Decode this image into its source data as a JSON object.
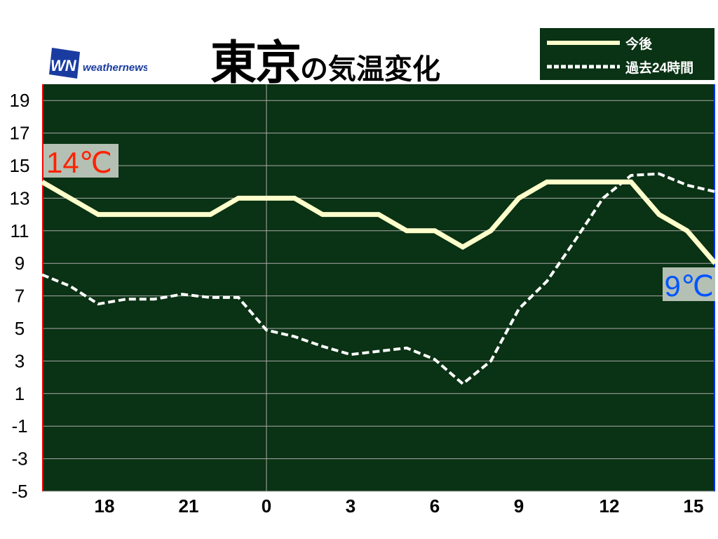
{
  "logo": {
    "mark": "WN",
    "text": "weathernews"
  },
  "title": {
    "main": "東京",
    "sub": "の気温変化"
  },
  "legend": [
    {
      "label": "今後",
      "style": "solid",
      "color": "#ffffcc"
    },
    {
      "label": "過去24時間",
      "style": "dashed",
      "color": "#ffffff"
    }
  ],
  "colors": {
    "plot_bg": "#0a3214",
    "grid": "#aaaaaa",
    "label_bg": "#b4c0b4",
    "max_label": "#ff2200",
    "min_label": "#0055ff",
    "left_edge": "#ff0000",
    "right_edge": "#0033ff"
  },
  "chart_data": {
    "type": "line",
    "title": "東京の気温変化",
    "xlabel": "",
    "ylabel": "",
    "x": [
      16,
      17,
      18,
      19,
      20,
      21,
      22,
      23,
      0,
      1,
      2,
      3,
      4,
      5,
      6,
      7,
      8,
      9,
      10,
      11,
      12,
      13,
      14,
      15,
      16
    ],
    "xlim_hours": [
      16,
      40
    ],
    "xticks": [
      18,
      21,
      0,
      3,
      6,
      9,
      12,
      15
    ],
    "yticks": [
      19,
      17,
      15,
      13,
      11,
      9,
      7,
      5,
      3,
      1,
      -1,
      -3,
      -5
    ],
    "ylim": [
      -5,
      20
    ],
    "grid": "horizontal every 2 units, vertical at 0",
    "series": [
      {
        "name": "今後",
        "style": "solid",
        "values": [
          14,
          13,
          12,
          12,
          12,
          12,
          12,
          13,
          13,
          13,
          12,
          12,
          12,
          11,
          11,
          10,
          11,
          13,
          14,
          14,
          14,
          14,
          12,
          11,
          9
        ]
      },
      {
        "name": "過去24時間",
        "style": "dashed",
        "values": [
          8.3,
          7.6,
          6.5,
          6.8,
          6.8,
          7.1,
          6.9,
          6.9,
          4.9,
          4.5,
          3.9,
          3.4,
          3.6,
          3.8,
          3.1,
          1.6,
          3.0,
          6.2,
          7.9,
          10.4,
          13.0,
          14.4,
          14.5,
          13.8,
          13.4
        ]
      }
    ],
    "annotations": [
      {
        "text": "14℃",
        "at": "start",
        "color": "#ff2200"
      },
      {
        "text": "9℃",
        "at": "end",
        "color": "#0055ff"
      }
    ]
  }
}
